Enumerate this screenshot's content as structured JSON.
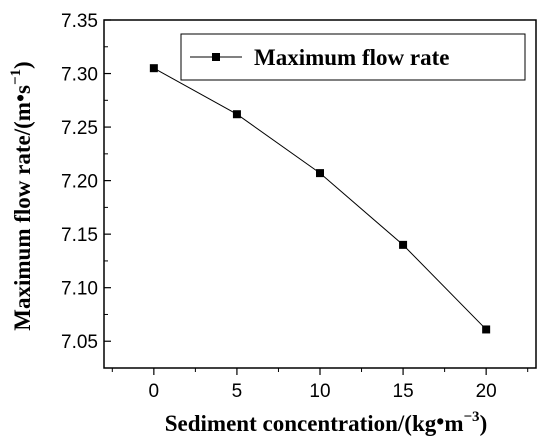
{
  "chart_data": {
    "type": "line",
    "x": [
      0,
      5,
      10,
      15,
      20
    ],
    "series": [
      {
        "name": "Maximum flow rate",
        "values": [
          7.305,
          7.262,
          7.207,
          7.14,
          7.061
        ]
      }
    ],
    "xlabel_main": "Sediment concentration/(kg",
    "xlabel_dot": "•",
    "xlabel_unit": "m",
    "xlabel_sup": "−3",
    "xlabel_close": ")",
    "ylabel_main": "Maximum flow rate/(m",
    "ylabel_dot": "•",
    "ylabel_unit": "s",
    "ylabel_sup": "−1",
    "ylabel_close": ")",
    "xlim": [
      -3,
      23
    ],
    "ylim": [
      7.025,
      7.35
    ],
    "xticks": [
      0,
      5,
      10,
      15,
      20
    ],
    "xtick_labels": [
      "0",
      "5",
      "10",
      "15",
      "20"
    ],
    "yticks": [
      7.05,
      7.1,
      7.15,
      7.2,
      7.25,
      7.3,
      7.35
    ],
    "ytick_labels": [
      "7.05",
      "7.10",
      "7.15",
      "7.20",
      "7.25",
      "7.30",
      "7.35"
    ],
    "grid": false,
    "legend_position": "top-right",
    "line_color": "#000000",
    "marker": "square"
  }
}
